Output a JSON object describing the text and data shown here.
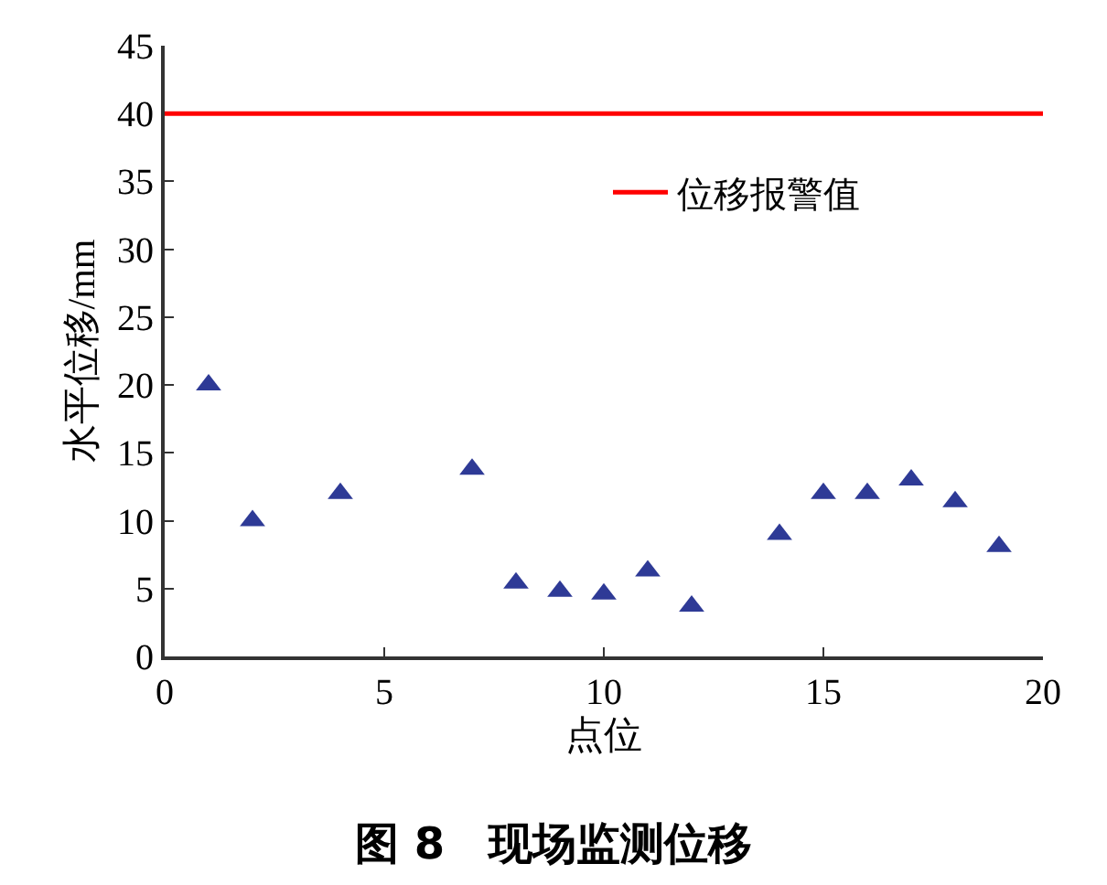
{
  "chart_data": {
    "type": "scatter",
    "title": "图 8　现场监测位移",
    "xlabel": "点位",
    "ylabel": "水平位移/mm",
    "x": [
      1,
      2,
      4,
      7,
      8,
      9,
      10,
      11,
      12,
      14,
      15,
      16,
      17,
      18,
      19
    ],
    "series": [
      {
        "color": "#2e3a96",
        "values": [
          20,
          10,
          12,
          13.8,
          5.4,
          4.8,
          4.6,
          6.3,
          3.7,
          9,
          12,
          12,
          13,
          11.4,
          8.1
        ]
      }
    ],
    "marker": "triangle",
    "xlim": [
      0,
      20
    ],
    "xticks": [
      0,
      5,
      10,
      15,
      20
    ],
    "ylim": [
      0,
      45
    ],
    "yticks": [
      0,
      5,
      10,
      15,
      20,
      25,
      30,
      35,
      40,
      45
    ],
    "ref_lines": [
      {
        "axis": "y",
        "value": 40,
        "label": "位移报警值",
        "color": "#ff0000",
        "line_style": "solid"
      }
    ],
    "legend": "right"
  }
}
